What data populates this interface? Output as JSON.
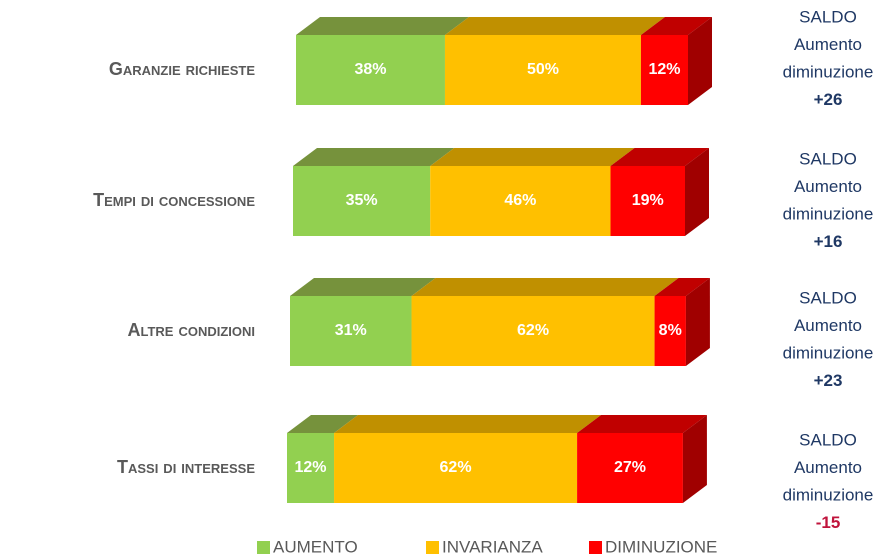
{
  "chart_data": {
    "type": "bar3d_stacked_horizontal",
    "categories": [
      "Garanzie richieste",
      "Tempi di concessione",
      "Altre condizioni",
      "Tassi di interesse"
    ],
    "series": [
      {
        "name": "AUMENTO",
        "color": "#92d050",
        "top_color": "#76923c",
        "values": [
          38,
          35,
          31,
          12
        ],
        "value_labels": [
          "38%",
          "35%",
          "31%",
          "12%"
        ]
      },
      {
        "name": "INVARIANZA",
        "color": "#ffc000",
        "top_color": "#c09000",
        "values": [
          50,
          46,
          62,
          62
        ],
        "value_labels": [
          "50%",
          "46%",
          "62%",
          "62%"
        ]
      },
      {
        "name": "DIMINUZIONE",
        "color": "#ff0000",
        "top_color": "#c00000",
        "values": [
          12,
          19,
          8,
          27
        ],
        "value_labels": [
          "12%",
          "19%",
          "8%",
          "27%"
        ]
      }
    ],
    "xlim": [
      0,
      100
    ],
    "annotations": [
      {
        "lines": [
          "SALDO",
          "Aumento",
          "diminuzione"
        ],
        "value": "+26",
        "value_color": "#1f3864"
      },
      {
        "lines": [
          "SALDO",
          "Aumento",
          "diminuzione"
        ],
        "value": "+16",
        "value_color": "#1f3864"
      },
      {
        "lines": [
          "SALDO",
          "Aumento",
          "diminuzione"
        ],
        "value": "+23",
        "value_color": "#1f3864"
      },
      {
        "lines": [
          "SALDO",
          "Aumento",
          "diminuzione"
        ],
        "value": "-15",
        "value_color": "#c0143c"
      }
    ],
    "legend": "bottom"
  }
}
